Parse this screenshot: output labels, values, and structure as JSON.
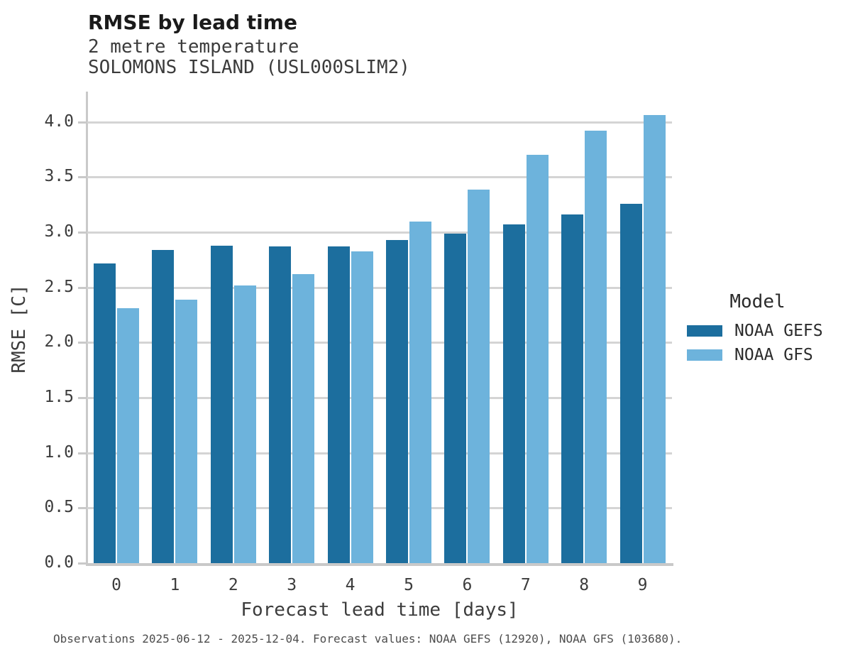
{
  "header": {
    "title": "RMSE by lead time",
    "subtitle1": "2 metre temperature",
    "subtitle2": "SOLOMONS ISLAND (USL000SLIM2)"
  },
  "axes": {
    "xlabel": "Forecast lead time [days]",
    "ylabel": "RMSE [C]"
  },
  "legend": {
    "title": "Model",
    "items": [
      {
        "label": "NOAA GEFS",
        "color": "#1c6e9e"
      },
      {
        "label": "NOAA GFS",
        "color": "#6db3dc"
      }
    ]
  },
  "footer": {
    "note": "Observations 2025-06-12 - 2025-12-04. Forecast values: NOAA GEFS (12920), NOAA GFS (103680)."
  },
  "colors": {
    "gefs_dark_blue": "#1c6e9e",
    "gfs_light_blue": "#6db3dc",
    "gridline_gray": "#d4d4d4",
    "spine_gray": "#c9c9c9",
    "title_text": "#1a1a1a",
    "body_text": "#3c3c3c",
    "footer_text": "#4d4d4d"
  },
  "chart_data": {
    "type": "bar",
    "title": "RMSE by lead time",
    "subtitle": [
      "2 metre temperature",
      "SOLOMONS ISLAND (USL000SLIM2)"
    ],
    "categories": [
      "0",
      "1",
      "2",
      "3",
      "4",
      "5",
      "6",
      "7",
      "8",
      "9"
    ],
    "series": [
      {
        "name": "NOAA GEFS",
        "color": "#1c6e9e",
        "values": [
          2.72,
          2.84,
          2.88,
          2.87,
          2.87,
          2.93,
          2.99,
          3.07,
          3.16,
          3.26
        ]
      },
      {
        "name": "NOAA GFS",
        "color": "#6db3dc",
        "values": [
          2.31,
          2.39,
          2.52,
          2.62,
          2.83,
          3.1,
          3.39,
          3.7,
          3.92,
          4.06
        ]
      }
    ],
    "xlabel": "Forecast lead time [days]",
    "ylabel": "RMSE [C]",
    "ylim": [
      0.0,
      4.28
    ],
    "yticks": [
      0.0,
      0.5,
      1.0,
      1.5,
      2.0,
      2.5,
      3.0,
      3.5,
      4.0
    ],
    "grid": true,
    "legend_title": "Model",
    "legend_position": "right",
    "footnote": "Observations 2025-06-12 - 2025-12-04. Forecast values: NOAA GEFS (12920), NOAA GFS (103680)."
  }
}
